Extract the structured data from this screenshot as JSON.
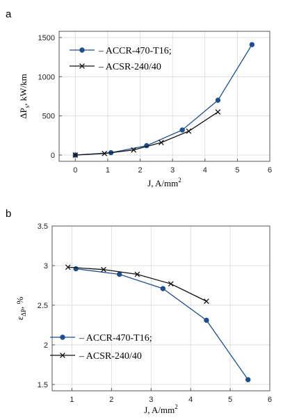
{
  "chart_data": [
    {
      "panel": "a",
      "type": "line",
      "xlabel": "J, A/mm",
      "xlabel_sup": "2",
      "ylabel": "ΔP",
      "ylabel_sub": "s",
      "ylabel_suffix": ", kW/km",
      "xlim": [
        -0.5,
        6
      ],
      "ylim": [
        -80,
        1580
      ],
      "xticks": [
        0,
        1,
        2,
        3,
        4,
        5,
        6
      ],
      "yticks": [
        0,
        500,
        1000,
        1500
      ],
      "grid": true,
      "legend_position": "top-left",
      "series": [
        {
          "name": "– ACCR-470-T16;",
          "marker": "circle",
          "color": "#1f4e8c",
          "x": [
            0,
            1.1,
            2.2,
            3.3,
            4.4,
            5.45
          ],
          "y": [
            0,
            30,
            120,
            320,
            700,
            1410
          ]
        },
        {
          "name": "– ACSR-240/40",
          "marker": "cross",
          "color": "#111111",
          "x": [
            0,
            0.9,
            1.8,
            2.65,
            3.5,
            4.4
          ],
          "y": [
            0,
            20,
            65,
            160,
            305,
            550
          ]
        }
      ]
    },
    {
      "panel": "b",
      "type": "line",
      "xlabel": "J, A/mm",
      "xlabel_sup": "2",
      "ylabel": "ε",
      "ylabel_sub": "ΔP",
      "ylabel_suffix": ", %",
      "xlim": [
        0.5,
        6
      ],
      "ylim": [
        1.42,
        3.5
      ],
      "xticks": [
        1,
        2,
        3,
        4,
        5,
        6
      ],
      "yticks": [
        1.5,
        2,
        2.5,
        3,
        3.5
      ],
      "ytick_labels": [
        "1.5",
        "2",
        "2.5",
        "3",
        "3.5"
      ],
      "grid": true,
      "legend_position": "bottom-left",
      "series": [
        {
          "name": "– ACCR-470-T16;",
          "marker": "circle",
          "color": "#1f4e8c",
          "x": [
            1.1,
            2.2,
            3.3,
            4.4,
            5.45
          ],
          "y": [
            2.96,
            2.89,
            2.71,
            2.31,
            1.56
          ]
        },
        {
          "name": "– ACSR-240/40",
          "marker": "cross",
          "color": "#111111",
          "x": [
            0.9,
            1.8,
            2.65,
            3.5,
            4.4
          ],
          "y": [
            2.98,
            2.95,
            2.89,
            2.77,
            2.55
          ]
        }
      ]
    }
  ]
}
